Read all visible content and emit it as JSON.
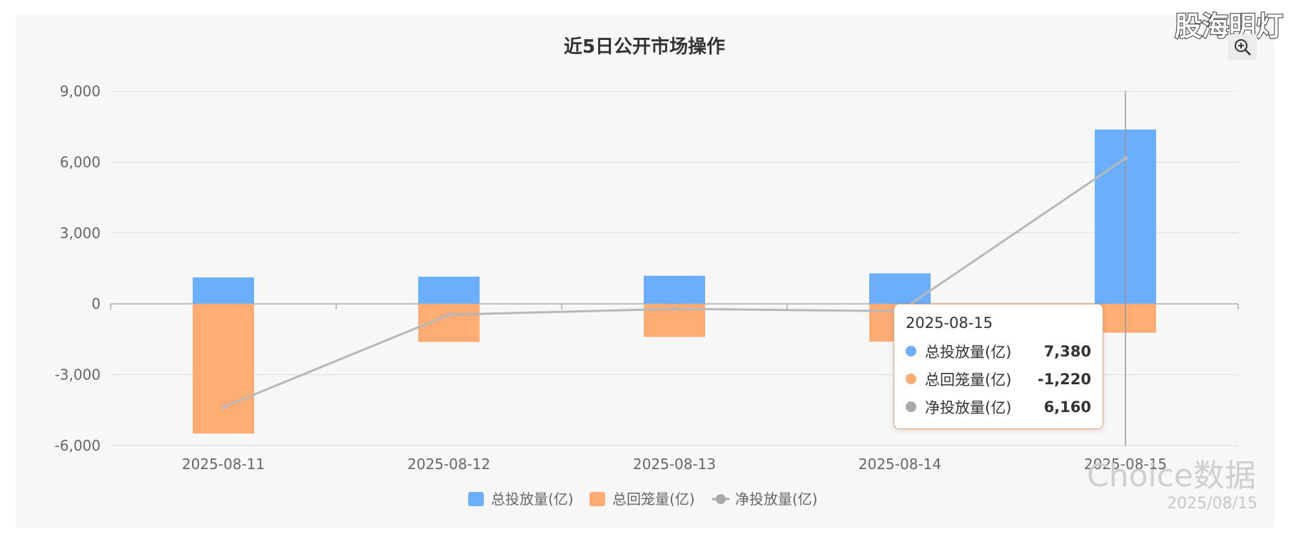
{
  "chart_data": {
    "type": "bar",
    "title": "近5日公开市场操作",
    "categories": [
      "2025-08-11",
      "2025-08-12",
      "2025-08-13",
      "2025-08-14",
      "2025-08-15"
    ],
    "series": [
      {
        "name": "总投放量(亿)",
        "type": "bar",
        "color": "#6aaefc",
        "values": [
          1120,
          1150,
          1190,
          1290,
          7380
        ]
      },
      {
        "name": "总回笼量(亿)",
        "type": "bar",
        "color": "#ffab74",
        "values": [
          -5490,
          -1610,
          -1400,
          -1600,
          -1220
        ]
      },
      {
        "name": "净投放量(亿)",
        "type": "line",
        "color": "#b8b8b8",
        "values": [
          -4370,
          -460,
          -210,
          -310,
          6160
        ]
      }
    ],
    "ylim": [
      -6000,
      9000
    ],
    "yticks": [
      9000,
      6000,
      3000,
      0,
      -3000,
      -6000
    ],
    "ytick_labels": [
      "9,000",
      "6,000",
      "3,000",
      "0",
      "-3,000",
      "-6,000"
    ],
    "grid": true,
    "legend_position": "bottom-center"
  },
  "tooltip": {
    "date": "2025-08-15",
    "rows": [
      {
        "name": "总投放量(亿)",
        "value": "7,380",
        "color": "#6aaefc"
      },
      {
        "name": "总回笼量(亿)",
        "value": "-1,220",
        "color": "#ffab74"
      },
      {
        "name": "净投放量(亿)",
        "value": "6,160",
        "color": "#a9a9a9"
      }
    ]
  },
  "watermark": {
    "brand": "Choice数据",
    "date": "2025/08/15"
  },
  "corner_logo": "股海明灯",
  "toolbar": {
    "zoom_icon": "zoom-in-icon"
  }
}
